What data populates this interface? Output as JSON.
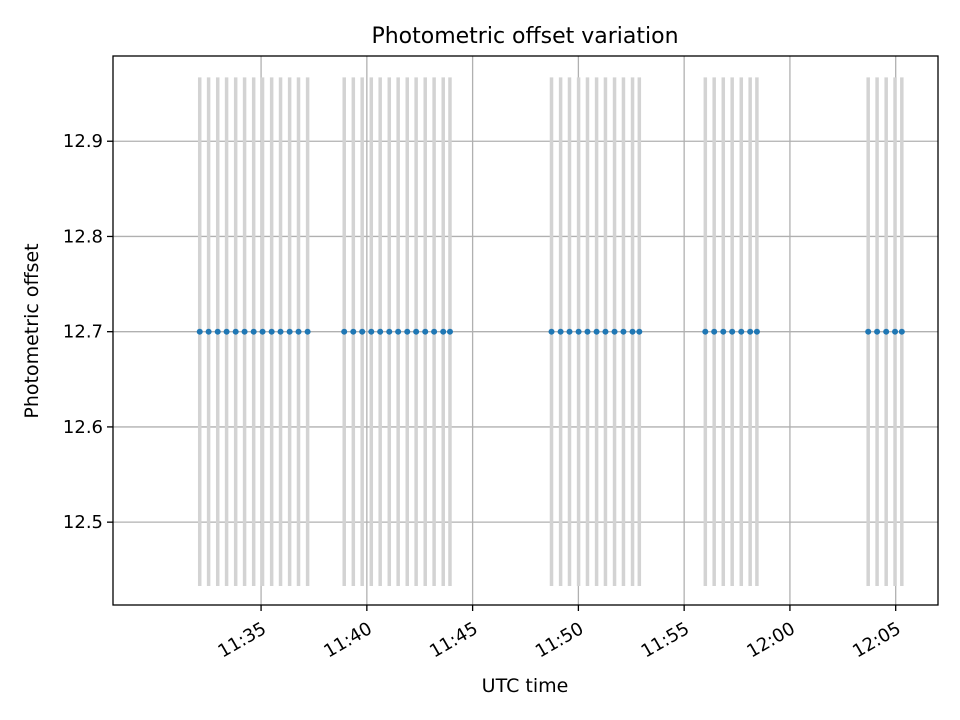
{
  "chart_data": {
    "type": "scatter",
    "title": "Photometric offset variation",
    "xlabel": "UTC time",
    "ylabel": "Photometric offset",
    "x_unit": "minutes after 11:00 UTC",
    "xlim": [
      28.0,
      67.0
    ],
    "ylim": [
      12.413,
      12.9895
    ],
    "x_ticks": [
      35,
      40,
      45,
      50,
      55,
      60,
      65
    ],
    "x_tick_labels": [
      "11:35",
      "11:40",
      "11:45",
      "11:50",
      "11:55",
      "12:00",
      "12:05"
    ],
    "y_ticks": [
      12.5,
      12.6,
      12.7,
      12.8,
      12.9
    ],
    "y_tick_labels": [
      "12.5",
      "12.6",
      "12.7",
      "12.8",
      "12.9"
    ],
    "grid": true,
    "legend": null,
    "colors": {
      "points": "#1f77b4",
      "error_bars": "#d3d3d3",
      "grid": "#b0b0b0"
    },
    "series": [
      {
        "x": [
          32.1,
          32.52,
          32.95,
          33.37,
          33.8,
          34.22,
          34.65,
          35.07,
          35.5,
          35.92,
          36.35,
          36.77,
          37.2,
          38.93,
          39.36,
          39.78,
          40.21,
          40.63,
          41.06,
          41.48,
          41.91,
          42.33,
          42.76,
          43.18,
          43.61,
          43.93,
          48.73,
          49.16,
          49.58,
          50.01,
          50.43,
          50.86,
          51.28,
          51.71,
          52.13,
          52.56,
          52.88,
          56.0,
          56.42,
          56.85,
          57.27,
          57.7,
          58.12,
          58.44,
          63.7,
          64.12,
          64.55,
          64.97,
          65.29
        ],
        "y": [
          12.7,
          12.7,
          12.7,
          12.7,
          12.7,
          12.7,
          12.7,
          12.7,
          12.7,
          12.7,
          12.7,
          12.7,
          12.7,
          12.7,
          12.7,
          12.7,
          12.7,
          12.7,
          12.7,
          12.7,
          12.7,
          12.7,
          12.7,
          12.7,
          12.7,
          12.7,
          12.7,
          12.7,
          12.7,
          12.7,
          12.7,
          12.7,
          12.7,
          12.7,
          12.7,
          12.7,
          12.7,
          12.7,
          12.7,
          12.7,
          12.7,
          12.7,
          12.7,
          12.7,
          12.7,
          12.7,
          12.7,
          12.7,
          12.7
        ],
        "yerr": 0.267
      }
    ]
  }
}
